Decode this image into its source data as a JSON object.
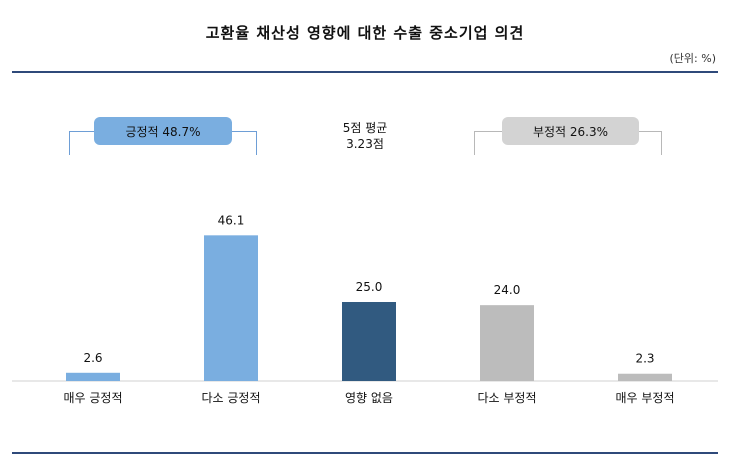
{
  "header": {
    "title": "고환율 채산성 영향에 대한 수출 중소기업 의견",
    "unit": "(단위: %)"
  },
  "summary": {
    "positive_label": "긍정적  48.7%",
    "negative_label": "부정적  26.3%",
    "average_line1": "5점 평균",
    "average_line2": "3.23점"
  },
  "chart_data": {
    "type": "bar",
    "categories": [
      "매우 긍정적",
      "다소 긍정적",
      "영향 없음",
      "다소 부정적",
      "매우 부정적"
    ],
    "values": [
      2.6,
      46.1,
      25.0,
      24.0,
      2.3
    ],
    "value_labels": [
      "2.6",
      "46.1",
      "25.0",
      "24.0",
      "2.3"
    ],
    "colors": [
      "#7aaee0",
      "#7aaee0",
      "#315a80",
      "#bcbcbc",
      "#bcbcbc"
    ],
    "ylim": [
      0,
      50
    ],
    "title": "고환율 채산성 영향에 대한 수출 중소기업 의견",
    "xlabel": "",
    "ylabel": "",
    "grid": false,
    "legend": "none"
  }
}
